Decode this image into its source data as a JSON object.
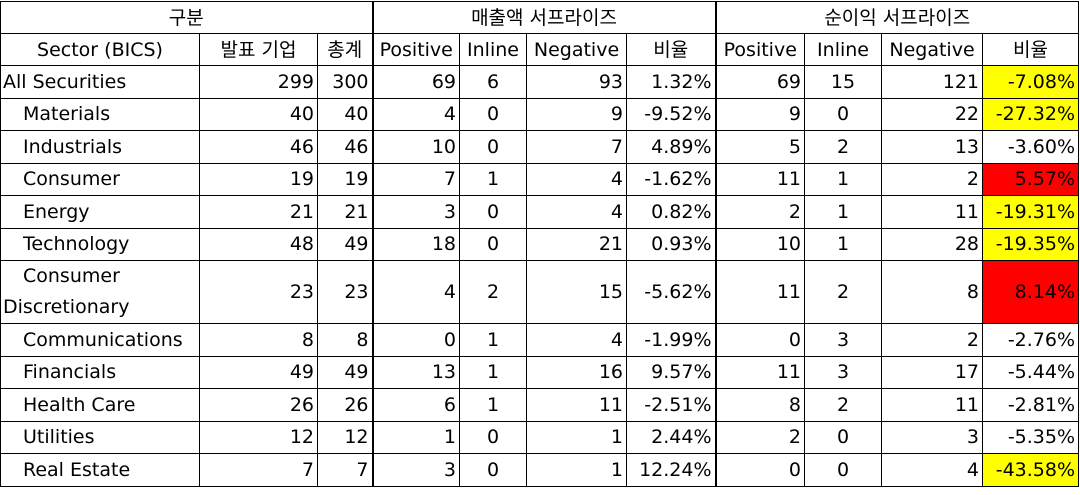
{
  "header": {
    "group_label": "구분",
    "revenue_label": "매출액 서프라이즈",
    "netincome_label": "순이익 서프라이즈",
    "col_sector": "Sector (BICS)",
    "col_reported": "발표 기업",
    "col_total": "총계",
    "col_positive": "Positive",
    "col_inline": "Inline",
    "col_negative": "Negative",
    "col_ratio": "비율"
  },
  "colors": {
    "yellow_highlight": "#ffff00",
    "red_highlight": "#ff0000"
  },
  "rows": [
    {
      "sector": "All Securities",
      "reported": "299",
      "total": "300",
      "rev_pos": "69",
      "rev_in": "6",
      "rev_neg": "93",
      "rev_ratio": "1.32%",
      "ni_pos": "69",
      "ni_in": "15",
      "ni_neg": "121",
      "ni_ratio": "-7.08%",
      "ni_highlight": "yellow"
    },
    {
      "sector": "Materials",
      "reported": "40",
      "total": "40",
      "rev_pos": "4",
      "rev_in": "0",
      "rev_neg": "9",
      "rev_ratio": "-9.52%",
      "ni_pos": "9",
      "ni_in": "0",
      "ni_neg": "22",
      "ni_ratio": "-27.32%",
      "ni_highlight": "yellow"
    },
    {
      "sector": "Industrials",
      "reported": "46",
      "total": "46",
      "rev_pos": "10",
      "rev_in": "0",
      "rev_neg": "7",
      "rev_ratio": "4.89%",
      "ni_pos": "5",
      "ni_in": "2",
      "ni_neg": "13",
      "ni_ratio": "-3.60%",
      "ni_highlight": "none"
    },
    {
      "sector": "Consumer",
      "reported": "19",
      "total": "19",
      "rev_pos": "7",
      "rev_in": "1",
      "rev_neg": "4",
      "rev_ratio": "-1.62%",
      "ni_pos": "11",
      "ni_in": "1",
      "ni_neg": "2",
      "ni_ratio": "5.57%",
      "ni_highlight": "red"
    },
    {
      "sector": "Energy",
      "reported": "21",
      "total": "21",
      "rev_pos": "3",
      "rev_in": "0",
      "rev_neg": "4",
      "rev_ratio": "0.82%",
      "ni_pos": "2",
      "ni_in": "1",
      "ni_neg": "11",
      "ni_ratio": "-19.31%",
      "ni_highlight": "yellow"
    },
    {
      "sector": "Technology",
      "reported": "48",
      "total": "49",
      "rev_pos": "18",
      "rev_in": "0",
      "rev_neg": "21",
      "rev_ratio": "0.93%",
      "ni_pos": "10",
      "ni_in": "1",
      "ni_neg": "28",
      "ni_ratio": "-19.35%",
      "ni_highlight": "yellow"
    },
    {
      "sector_line1": "Consumer",
      "sector_line2": "Discretionary",
      "reported": "23",
      "total": "23",
      "rev_pos": "4",
      "rev_in": "2",
      "rev_neg": "15",
      "rev_ratio": "-5.62%",
      "ni_pos": "11",
      "ni_in": "2",
      "ni_neg": "8",
      "ni_ratio": "8.14%",
      "ni_highlight": "red"
    },
    {
      "sector": "Communications",
      "reported": "8",
      "total": "8",
      "rev_pos": "0",
      "rev_in": "1",
      "rev_neg": "4",
      "rev_ratio": "-1.99%",
      "ni_pos": "0",
      "ni_in": "3",
      "ni_neg": "2",
      "ni_ratio": "-2.76%",
      "ni_highlight": "none"
    },
    {
      "sector": "Financials",
      "reported": "49",
      "total": "49",
      "rev_pos": "13",
      "rev_in": "1",
      "rev_neg": "16",
      "rev_ratio": "9.57%",
      "ni_pos": "11",
      "ni_in": "3",
      "ni_neg": "17",
      "ni_ratio": "-5.44%",
      "ni_highlight": "none"
    },
    {
      "sector": "Health Care",
      "reported": "26",
      "total": "26",
      "rev_pos": "6",
      "rev_in": "1",
      "rev_neg": "11",
      "rev_ratio": "-2.51%",
      "ni_pos": "8",
      "ni_in": "2",
      "ni_neg": "11",
      "ni_ratio": "-2.81%",
      "ni_highlight": "none"
    },
    {
      "sector": "Utilities",
      "reported": "12",
      "total": "12",
      "rev_pos": "1",
      "rev_in": "0",
      "rev_neg": "1",
      "rev_ratio": "2.44%",
      "ni_pos": "2",
      "ni_in": "0",
      "ni_neg": "3",
      "ni_ratio": "-5.35%",
      "ni_highlight": "none"
    },
    {
      "sector": "Real Estate",
      "reported": "7",
      "total": "7",
      "rev_pos": "3",
      "rev_in": "0",
      "rev_neg": "1",
      "rev_ratio": "12.24%",
      "ni_pos": "0",
      "ni_in": "0",
      "ni_neg": "4",
      "ni_ratio": "-43.58%",
      "ni_highlight": "yellow"
    }
  ]
}
